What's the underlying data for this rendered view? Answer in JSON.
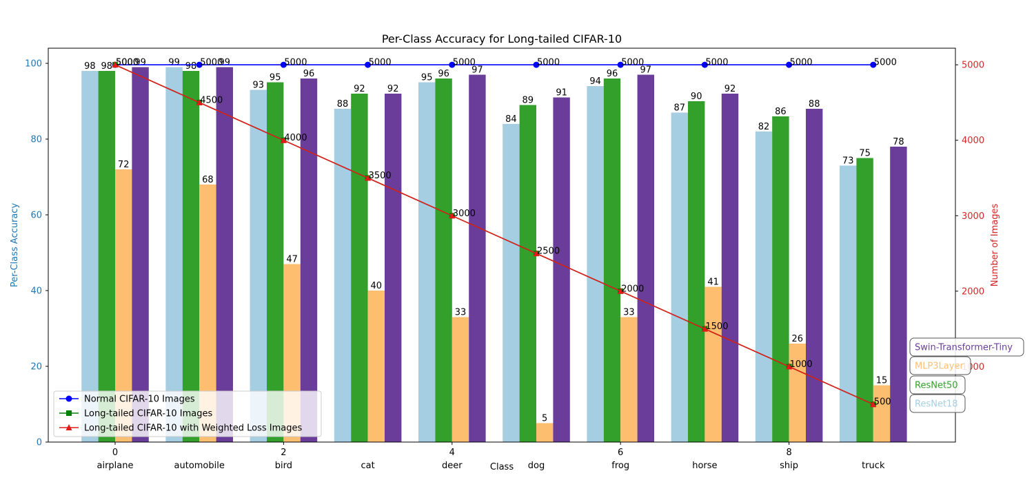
{
  "chart_data": {
    "type": "bar",
    "title": "Per-Class Accuracy for Long-tailed CIFAR-10",
    "xlabel": "Class",
    "ylabel_left": "Per-Class Accuracy",
    "ylabel_right": "Number of Images",
    "ylim_left": [
      0,
      104
    ],
    "ylim_right": [
      0,
      5220
    ],
    "ticks_left": [
      0,
      20,
      40,
      60,
      80,
      100
    ],
    "ticks_right": [
      1000,
      2000,
      3000,
      4000,
      5000
    ],
    "x_numeric_ticks": [
      0,
      2,
      4,
      6,
      8
    ],
    "categories": [
      "airplane",
      "automobile",
      "bird",
      "cat",
      "deer",
      "dog",
      "frog",
      "horse",
      "ship",
      "truck"
    ],
    "bar_series": [
      {
        "name": "ResNet18",
        "color": "#a6cee3",
        "values": [
          98,
          99,
          93,
          88,
          95,
          84,
          94,
          87,
          82,
          73
        ]
      },
      {
        "name": "ResNet50",
        "color": "#33a02c",
        "values": [
          98,
          98,
          95,
          92,
          96,
          89,
          96,
          90,
          86,
          75
        ]
      },
      {
        "name": "MLP3Layer",
        "color": "#fdbf6f",
        "values": [
          72,
          68,
          47,
          40,
          33,
          5,
          33,
          41,
          26,
          15
        ]
      },
      {
        "name": "Swin-Transformer-Tiny",
        "color": "#6a3d9a",
        "values": [
          99,
          99,
          96,
          92,
          97,
          91,
          97,
          92,
          88,
          78
        ]
      }
    ],
    "bar_value_labels": [
      [
        "98",
        "99",
        "93",
        "88",
        "95",
        "84",
        "94",
        "87",
        "82",
        "73"
      ],
      [
        "98",
        "98",
        "95",
        "92",
        "96",
        "89",
        "96",
        "90",
        "86",
        "75"
      ],
      [
        "72",
        "68",
        "47",
        "40",
        "33",
        "5",
        "33",
        "41",
        "26",
        "15"
      ],
      [
        "99",
        "99",
        "96",
        "92",
        "97",
        "91",
        "97",
        "92",
        "88",
        "78"
      ]
    ],
    "line_series": [
      {
        "name": "Normal CIFAR-10 Images",
        "color": "#0000ff",
        "marker": "circle",
        "values": [
          5000,
          5000,
          5000,
          5000,
          5000,
          5000,
          5000,
          5000,
          5000,
          5000
        ]
      },
      {
        "name": "Long-tailed CIFAR-10 Images",
        "color": "#008000",
        "marker": "square",
        "values": [
          5000,
          4500,
          4000,
          3500,
          3000,
          2500,
          2000,
          1500,
          1000,
          500
        ]
      },
      {
        "name": "Long-tailed CIFAR-10 with Weighted Loss Images",
        "color": "#e31a1c",
        "marker": "triangle",
        "values": [
          5000,
          4500,
          4000,
          3500,
          3000,
          2500,
          2000,
          1500,
          1000,
          500
        ]
      }
    ],
    "line_value_labels": [
      [
        "5000",
        "5000",
        "5000",
        "5000",
        "5000",
        "5000",
        "5000",
        "5000",
        "5000",
        "5000"
      ],
      [
        "5000",
        "4500",
        "4000",
        "3500",
        "3000",
        "2500",
        "2000",
        "1500",
        "1000",
        "500"
      ]
    ],
    "legend": {
      "placement": "lower-left",
      "entries": [
        "Normal CIFAR-10 Images",
        "Long-tailed CIFAR-10 Images",
        "Long-tailed CIFAR-10 with Weighted Loss Images"
      ]
    },
    "model_labels": [
      "Swin-Transformer-Tiny",
      "MLP3Layer",
      "ResNet50",
      "ResNet18"
    ],
    "grid": false,
    "colors": {
      "left_axis": "#1f77b4",
      "right_axis": "#d62728"
    }
  }
}
